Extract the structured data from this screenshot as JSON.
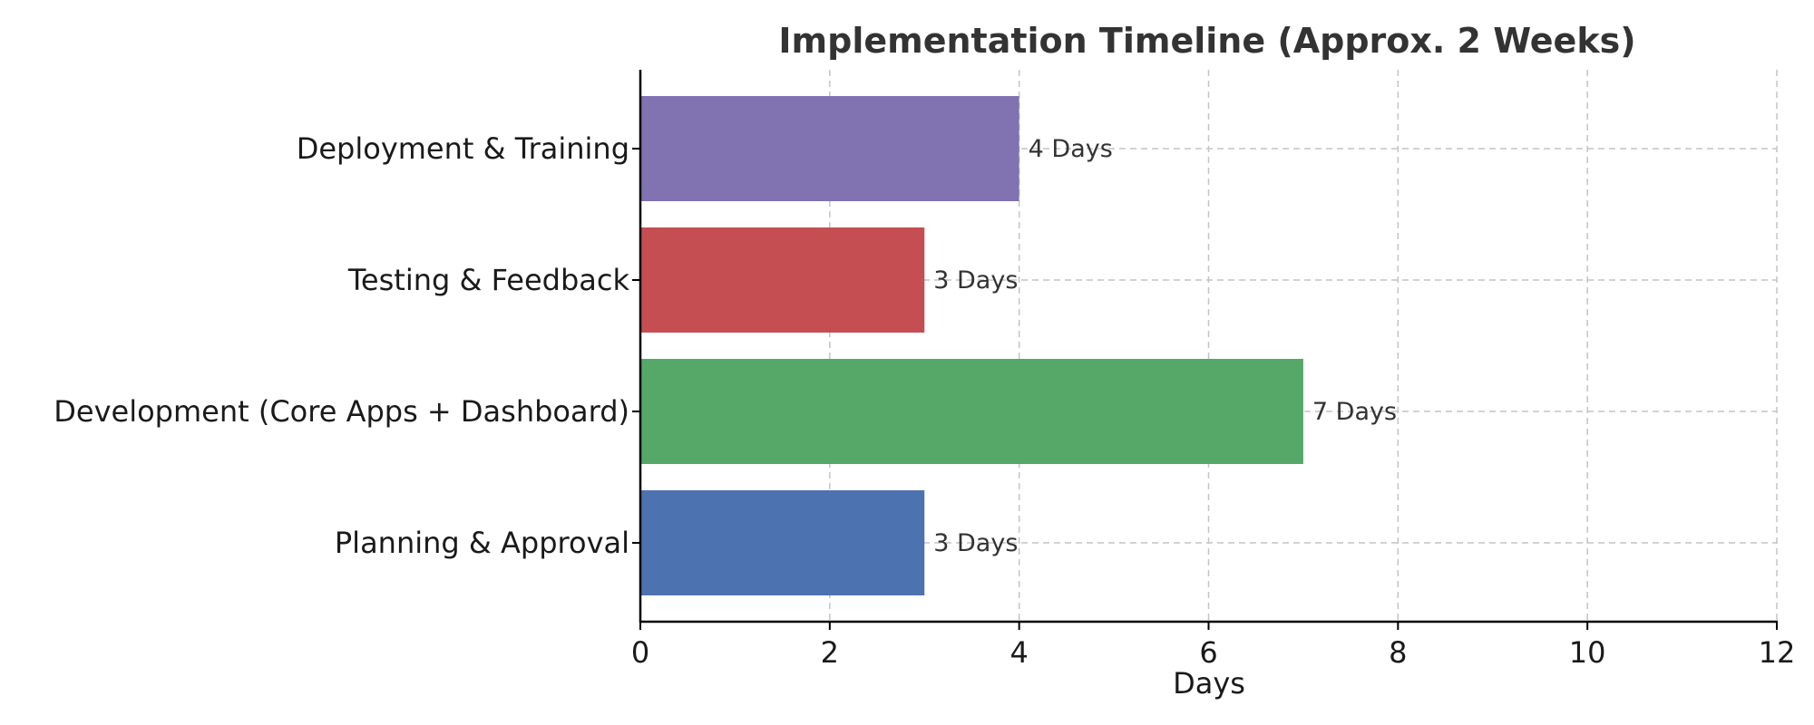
{
  "chart_data": {
    "type": "bar",
    "orientation": "horizontal",
    "title": "Implementation Timeline (Approx. 2 Weeks)",
    "xlabel": "Days",
    "ylabel": "",
    "xlim": [
      0,
      12
    ],
    "xticks": [
      0,
      2,
      4,
      6,
      8,
      10,
      12
    ],
    "grid": true,
    "categories": [
      "Planning & Approval",
      "Development (Core Apps + Dashboard)",
      "Testing & Feedback",
      "Deployment & Training"
    ],
    "values": [
      3,
      7,
      3,
      4
    ],
    "data_labels": [
      "3 Days",
      "7 Days",
      "3 Days",
      "4 Days"
    ],
    "colors": [
      "#4c72b0",
      "#55a868",
      "#c44e52",
      "#8172b2"
    ]
  }
}
